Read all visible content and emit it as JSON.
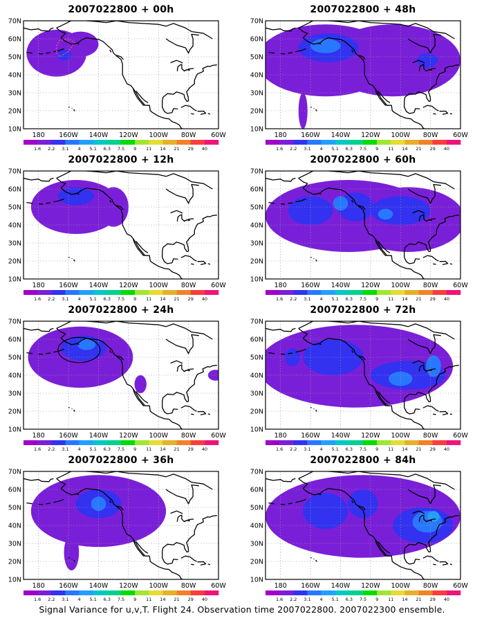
{
  "panels": [
    {
      "title": "2007022800 + 00h",
      "lead": "00h",
      "blobs": [
        {
          "l": 2,
          "cx": -168,
          "cy": 52,
          "rx": 20,
          "ry": 13
        },
        {
          "l": 2,
          "cx": -152,
          "cy": 57,
          "rx": 12,
          "ry": 7
        },
        {
          "l": 3,
          "cx": -163,
          "cy": 51,
          "rx": 5,
          "ry": 3
        }
      ]
    },
    {
      "title": "2007022800 + 48h",
      "lead": "48h",
      "blobs": [
        {
          "l": 2,
          "cx": -150,
          "cy": 48,
          "rx": 46,
          "ry": 20
        },
        {
          "l": 2,
          "cx": -105,
          "cy": 48,
          "rx": 45,
          "ry": 20
        },
        {
          "l": 2,
          "cx": -165,
          "cy": 20,
          "rx": 3,
          "ry": 10
        },
        {
          "l": 3,
          "cx": -148,
          "cy": 55,
          "rx": 20,
          "ry": 8
        },
        {
          "l": 3,
          "cx": -82,
          "cy": 48,
          "rx": 7,
          "ry": 4
        },
        {
          "l": 4,
          "cx": -150,
          "cy": 56,
          "rx": 10,
          "ry": 4
        }
      ]
    },
    {
      "title": "2007022800 + 12h",
      "lead": "12h",
      "blobs": [
        {
          "l": 2,
          "cx": -155,
          "cy": 50,
          "rx": 30,
          "ry": 15
        },
        {
          "l": 2,
          "cx": -130,
          "cy": 50,
          "rx": 10,
          "ry": 11
        },
        {
          "l": 3,
          "cx": -155,
          "cy": 56,
          "rx": 12,
          "ry": 5
        }
      ]
    },
    {
      "title": "2007022800 + 60h",
      "lead": "60h",
      "blobs": [
        {
          "l": 2,
          "cx": -135,
          "cy": 45,
          "rx": 55,
          "ry": 20
        },
        {
          "l": 2,
          "cx": -95,
          "cy": 43,
          "rx": 38,
          "ry": 18
        },
        {
          "l": 3,
          "cx": -160,
          "cy": 48,
          "rx": 15,
          "ry": 8
        },
        {
          "l": 3,
          "cx": -130,
          "cy": 50,
          "rx": 12,
          "ry": 8
        },
        {
          "l": 3,
          "cx": -100,
          "cy": 48,
          "rx": 20,
          "ry": 8
        },
        {
          "l": 4,
          "cx": -140,
          "cy": 52,
          "rx": 5,
          "ry": 4
        },
        {
          "l": 4,
          "cx": -110,
          "cy": 46,
          "rx": 5,
          "ry": 3
        }
      ]
    },
    {
      "title": "2007022800 + 24h",
      "lead": "24h",
      "blobs": [
        {
          "l": 2,
          "cx": -152,
          "cy": 50,
          "rx": 35,
          "ry": 17
        },
        {
          "l": 2,
          "cx": -112,
          "cy": 35,
          "rx": 4,
          "ry": 5
        },
        {
          "l": 2,
          "cx": -62,
          "cy": 40,
          "rx": 5,
          "ry": 3
        },
        {
          "l": 3,
          "cx": -150,
          "cy": 55,
          "rx": 15,
          "ry": 7
        },
        {
          "l": 4,
          "cx": -148,
          "cy": 57,
          "rx": 6,
          "ry": 3
        }
      ]
    },
    {
      "title": "2007022800 + 72h",
      "lead": "72h",
      "blobs": [
        {
          "l": 2,
          "cx": -130,
          "cy": 45,
          "rx": 65,
          "ry": 23
        },
        {
          "l": 3,
          "cx": -145,
          "cy": 50,
          "rx": 20,
          "ry": 10
        },
        {
          "l": 3,
          "cx": -95,
          "cy": 40,
          "rx": 25,
          "ry": 8
        },
        {
          "l": 3,
          "cx": -172,
          "cy": 50,
          "rx": 5,
          "ry": 5
        },
        {
          "l": 4,
          "cx": -78,
          "cy": 45,
          "rx": 5,
          "ry": 6
        },
        {
          "l": 4,
          "cx": -100,
          "cy": 38,
          "rx": 8,
          "ry": 4
        }
      ]
    },
    {
      "title": "2007022800 + 36h",
      "lead": "36h",
      "blobs": [
        {
          "l": 2,
          "cx": -140,
          "cy": 48,
          "rx": 45,
          "ry": 20
        },
        {
          "l": 2,
          "cx": -158,
          "cy": 25,
          "rx": 5,
          "ry": 10
        },
        {
          "l": 3,
          "cx": -140,
          "cy": 52,
          "rx": 15,
          "ry": 8
        },
        {
          "l": 4,
          "cx": -140,
          "cy": 52,
          "rx": 5,
          "ry": 4
        }
      ]
    },
    {
      "title": "2007022800 + 84h",
      "lead": "84h",
      "blobs": [
        {
          "l": 2,
          "cx": -125,
          "cy": 45,
          "rx": 65,
          "ry": 23
        },
        {
          "l": 3,
          "cx": -150,
          "cy": 48,
          "rx": 15,
          "ry": 10
        },
        {
          "l": 3,
          "cx": -85,
          "cy": 40,
          "rx": 20,
          "ry": 10
        },
        {
          "l": 3,
          "cx": -125,
          "cy": 52,
          "rx": 10,
          "ry": 8
        },
        {
          "l": 4,
          "cx": -82,
          "cy": 42,
          "rx": 10,
          "ry": 6
        },
        {
          "l": 5,
          "cx": -78,
          "cy": 45,
          "rx": 4,
          "ry": 3
        }
      ]
    }
  ],
  "axis": {
    "lat_labels": [
      "70N",
      "60N",
      "50N",
      "40N",
      "30N",
      "20N",
      "10N"
    ],
    "lon_labels": [
      "180",
      "160W",
      "140W",
      "120W",
      "100W",
      "80W",
      "60W"
    ],
    "lon_range": [
      -190,
      -60
    ],
    "lat_range": [
      10,
      70
    ]
  },
  "legend": {
    "labels": [
      "1.6",
      "2.2",
      "3.1",
      "4",
      "5.1",
      "6.3",
      "7.5",
      "9",
      "11",
      "14",
      "21",
      "29",
      "40"
    ],
    "colors": [
      "#a000c8",
      "#7a1fd8",
      "#3232f0",
      "#2878ff",
      "#23a0ff",
      "#00c8c8",
      "#00d28c",
      "#00dc00",
      "#a0e632",
      "#e6dc32",
      "#e6af2d",
      "#f08228",
      "#fa3c3c",
      "#f0147a"
    ]
  },
  "colors": {
    "land_line": "#000000",
    "grid": "#9a9a9a",
    "flight_track": "#ff3c8c",
    "ellipse": "#000000"
  },
  "caption": "Signal Variance for u,v,T. Flight 24. Observation time 2007022800. 2007022300 ensemble."
}
